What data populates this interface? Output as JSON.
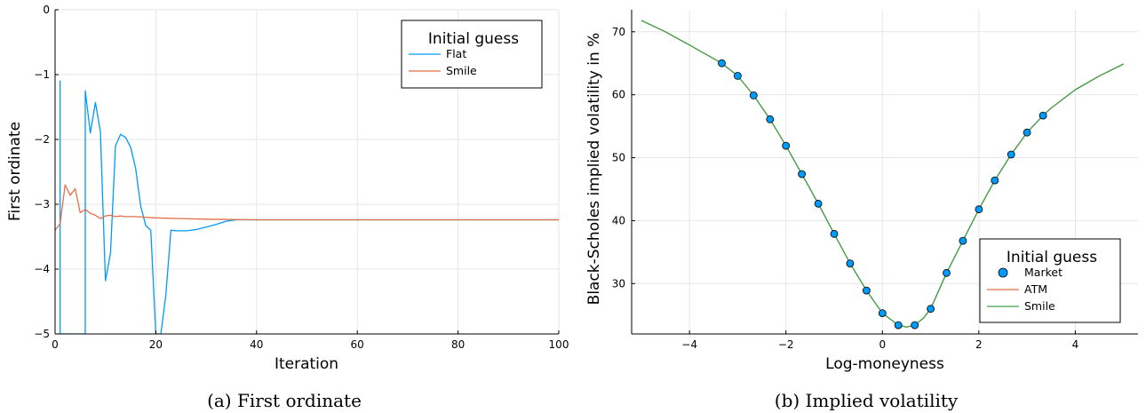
{
  "colors": {
    "series1": "#009af9",
    "series2": "#e26f46",
    "series3": "#3da44d",
    "market": "#009af9"
  },
  "chart_data": [
    {
      "type": "line",
      "caption": "(a)  First ordinate",
      "xlabel": "Iteration",
      "ylabel": "First ordinate",
      "xlim": [
        0,
        100
      ],
      "ylim": [
        -5,
        0
      ],
      "xticks": [
        0,
        20,
        40,
        60,
        80,
        100
      ],
      "yticks": [
        -5,
        -4,
        -3,
        -2,
        -1,
        0
      ],
      "ytick_labels": [
        "−5",
        "−4",
        "−3",
        "−2",
        "−1",
        "0"
      ],
      "grid": true,
      "legend": {
        "title": "Initial guess",
        "position": "top-right"
      },
      "series": [
        {
          "name": "Flat",
          "x": [
            0,
            1,
            1,
            1,
            6,
            6,
            7,
            8,
            9,
            10,
            11,
            12,
            13,
            14,
            15,
            16,
            17,
            18,
            19,
            20,
            21,
            22,
            23,
            24,
            25,
            26,
            28,
            30,
            32,
            34,
            36,
            40,
            60,
            80,
            100
          ],
          "y": [
            -5,
            -5,
            -1.1,
            -5,
            -5,
            -1.25,
            -1.9,
            -1.43,
            -1.88,
            -4.18,
            -3.75,
            -2.1,
            -1.92,
            -1.97,
            -2.12,
            -2.45,
            -3.03,
            -3.33,
            -3.4,
            -5,
            -5,
            -4.4,
            -3.4,
            -3.41,
            -3.41,
            -3.41,
            -3.39,
            -3.35,
            -3.31,
            -3.26,
            -3.24,
            -3.24,
            -3.24,
            -3.24,
            -3.24
          ]
        },
        {
          "name": "Smile",
          "x": [
            0,
            1,
            2,
            3,
            4,
            5,
            6,
            7,
            8,
            9,
            10,
            11,
            12,
            13,
            14,
            16,
            18,
            20,
            25,
            30,
            40,
            60,
            80,
            100
          ],
          "y": [
            -3.4,
            -3.3,
            -2.7,
            -2.86,
            -2.76,
            -3.13,
            -3.08,
            -3.14,
            -3.17,
            -3.22,
            -3.18,
            -3.17,
            -3.19,
            -3.18,
            -3.19,
            -3.19,
            -3.2,
            -3.21,
            -3.22,
            -3.23,
            -3.24,
            -3.24,
            -3.24,
            -3.24
          ]
        }
      ]
    },
    {
      "type": "scatter+line",
      "caption": "(b)  Implied volatility",
      "xlabel": "Log-moneyness",
      "ylabel": "Black-Scholes implied volatility in %",
      "xlim": [
        -5.2,
        5.3
      ],
      "ylim": [
        22,
        73.5
      ],
      "xticks": [
        -4,
        -2,
        0,
        2,
        4
      ],
      "xtick_labels": [
        "−4",
        "−2",
        "0",
        "2",
        "4"
      ],
      "yticks": [
        30,
        40,
        50,
        60,
        70
      ],
      "grid": true,
      "legend": {
        "title": "Initial guess",
        "position": "bottom-right"
      },
      "series": [
        {
          "name": "Market",
          "kind": "scatter",
          "x": [
            -3.33,
            -3.0,
            -2.67,
            -2.33,
            -2.0,
            -1.67,
            -1.33,
            -1.0,
            -0.67,
            -0.33,
            0.0,
            0.33,
            0.67,
            1.0,
            1.33,
            1.67,
            2.0,
            2.33,
            2.67,
            3.0,
            3.33
          ],
          "y": [
            65.0,
            63.0,
            59.9,
            56.1,
            51.9,
            47.4,
            42.7,
            37.9,
            33.2,
            28.9,
            25.3,
            23.4,
            23.4,
            26.0,
            31.7,
            36.8,
            41.8,
            46.4,
            50.5,
            54.0,
            56.7
          ]
        },
        {
          "name": "ATM",
          "kind": "line",
          "x": [
            -5,
            -4.5,
            -4,
            -3.33,
            -3.0,
            -2.67,
            -2.33,
            -2.0,
            -1.67,
            -1.33,
            -1.0,
            -0.67,
            -0.33,
            0.0,
            0.33,
            0.5,
            0.67,
            0.85,
            1.0,
            1.33,
            1.67,
            2.0,
            2.33,
            2.67,
            3.0,
            3.33,
            3.5,
            4,
            4.5,
            5
          ],
          "y": [
            71.8,
            70.0,
            67.9,
            65.0,
            63.0,
            59.9,
            56.1,
            51.9,
            47.4,
            42.7,
            37.9,
            33.2,
            28.9,
            25.3,
            23.4,
            23.1,
            23.4,
            24.5,
            26.0,
            31.7,
            36.8,
            41.8,
            46.4,
            50.5,
            54.0,
            56.7,
            57.9,
            60.8,
            63.0,
            64.9
          ]
        },
        {
          "name": "Smile",
          "kind": "line",
          "x": [
            -5,
            -4.5,
            -4,
            -3.33,
            -3.0,
            -2.67,
            -2.33,
            -2.0,
            -1.67,
            -1.33,
            -1.0,
            -0.67,
            -0.33,
            0.0,
            0.33,
            0.5,
            0.67,
            0.85,
            1.0,
            1.33,
            1.67,
            2.0,
            2.33,
            2.67,
            3.0,
            3.33,
            3.5,
            4,
            4.5,
            5
          ],
          "y": [
            71.8,
            70.0,
            67.9,
            65.0,
            63.0,
            59.9,
            56.1,
            51.9,
            47.4,
            42.7,
            37.9,
            33.2,
            28.9,
            25.3,
            23.4,
            23.1,
            23.4,
            24.5,
            26.0,
            31.7,
            36.8,
            41.8,
            46.4,
            50.5,
            54.0,
            56.7,
            57.9,
            60.8,
            63.0,
            64.9
          ]
        }
      ]
    }
  ]
}
